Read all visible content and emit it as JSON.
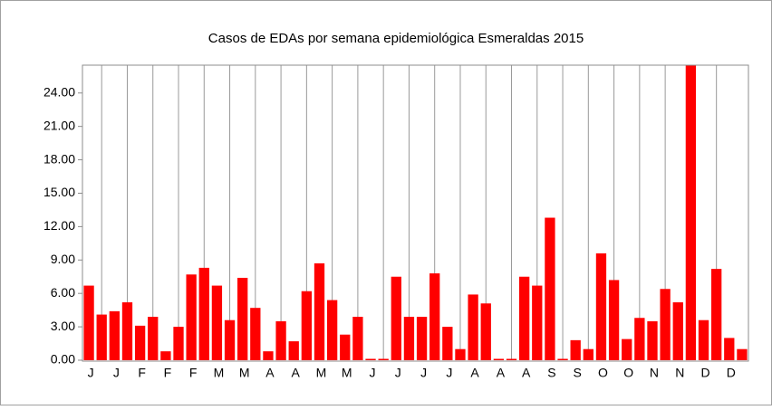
{
  "chart_data": {
    "type": "bar",
    "title": "Casos de EDAs por semana epidemiológica Esmeraldas 2015",
    "categories": [
      "J",
      null,
      "J",
      null,
      "F",
      null,
      "F",
      null,
      "F",
      null,
      "M",
      null,
      "M",
      null,
      "A",
      null,
      "A",
      null,
      "M",
      null,
      "M",
      null,
      "J",
      null,
      "J",
      null,
      "J",
      null,
      "J",
      null,
      "A",
      null,
      "A",
      null,
      "A",
      null,
      "S",
      null,
      "S",
      null,
      "O",
      null,
      "O",
      null,
      "N",
      null,
      "N",
      null,
      "D",
      null,
      "D",
      null
    ],
    "values": [
      6.7,
      4.1,
      4.4,
      5.2,
      3.1,
      3.9,
      0.8,
      3.0,
      7.7,
      8.3,
      6.7,
      3.6,
      7.4,
      4.7,
      0.8,
      3.5,
      1.7,
      6.2,
      8.7,
      5.4,
      2.3,
      3.9,
      0,
      0,
      7.5,
      3.9,
      3.9,
      7.8,
      3.0,
      1.0,
      5.9,
      5.1,
      0,
      0,
      7.5,
      6.7,
      12.8,
      0,
      1.8,
      1.0,
      9.6,
      7.2,
      1.9,
      3.8,
      3.5,
      6.4,
      5.2,
      27,
      3.6,
      8.2,
      2.0,
      1.0
    ],
    "color": "#ff0000",
    "ylim": [
      0,
      26.5
    ],
    "yticks": [
      {
        "value": 0,
        "label": "0.00"
      },
      {
        "value": 3,
        "label": "3.00"
      },
      {
        "value": 6,
        "label": "6.00"
      },
      {
        "value": 9,
        "label": "9.00"
      },
      {
        "value": 12,
        "label": "12.00"
      },
      {
        "value": 15,
        "label": "15.00"
      },
      {
        "value": 18,
        "label": "18.00"
      },
      {
        "value": 21,
        "label": "21.00"
      },
      {
        "value": 24,
        "label": "24.00"
      }
    ],
    "grid": true
  }
}
